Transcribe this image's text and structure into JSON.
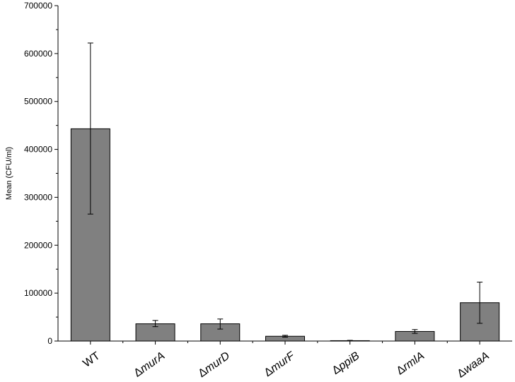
{
  "chart_data": {
    "type": "bar",
    "title": "",
    "xlabel": "",
    "ylabel": "Mean (CFU/ml)",
    "ylim": [
      0,
      700000
    ],
    "yticks": [
      0,
      100000,
      200000,
      300000,
      400000,
      500000,
      600000,
      700000
    ],
    "ytick_labels": [
      "0",
      "100000",
      "200000",
      "300000",
      "400000",
      "500000",
      "600000",
      "700000"
    ],
    "categories": [
      {
        "prefix": "",
        "italic": "",
        "plain": "WT"
      },
      {
        "prefix": "Δ",
        "italic": "murA",
        "plain": ""
      },
      {
        "prefix": "Δ",
        "italic": "murD",
        "plain": ""
      },
      {
        "prefix": "Δ",
        "italic": "murF",
        "plain": ""
      },
      {
        "prefix": "Δ",
        "italic": "ppiB",
        "plain": ""
      },
      {
        "prefix": "Δ",
        "italic": "rmlA",
        "plain": ""
      },
      {
        "prefix": "Δ",
        "italic": "waaA",
        "plain": ""
      }
    ],
    "values": [
      443000,
      36000,
      36000,
      10000,
      800,
      20000,
      80000
    ],
    "error_low": [
      265000,
      30000,
      25000,
      8000,
      0,
      16000,
      37000
    ],
    "error_high": [
      622000,
      43000,
      46000,
      12000,
      1500,
      24000,
      123000
    ],
    "bar_color": "#808080",
    "bar_edge_color": "#000000",
    "grid": false,
    "legend": "none"
  }
}
